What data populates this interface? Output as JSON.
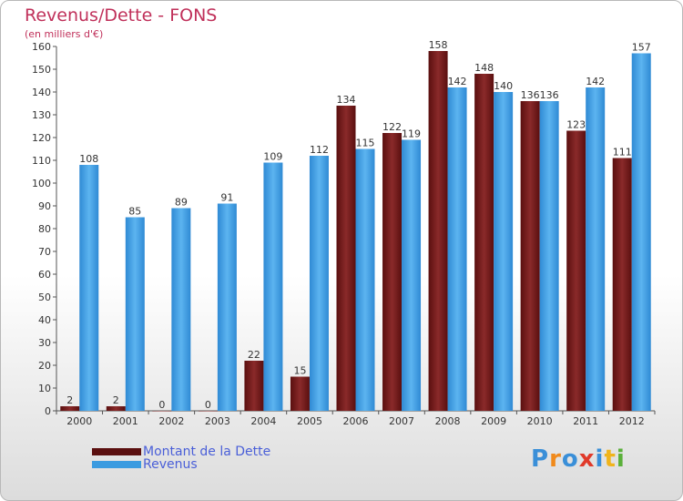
{
  "title": "Revenus/Dette - FONS",
  "subtitle": "(en milliers d'€)",
  "colors": {
    "dette": "#6b1414",
    "revenus": "#3d9ee3"
  },
  "legend": [
    {
      "label": "Montant de la Dette",
      "color": "#5a0f0f"
    },
    {
      "label": "Revenus",
      "color": "#3b9be0"
    }
  ],
  "logo": {
    "text": "Proxiti",
    "letters": [
      {
        "ch": "P",
        "color": "#3a8fd8"
      },
      {
        "ch": "r",
        "color": "#f08a1c"
      },
      {
        "ch": "o",
        "color": "#3a8fd8"
      },
      {
        "ch": "x",
        "color": "#e03a2a"
      },
      {
        "ch": "i",
        "color": "#3a8fd8"
      },
      {
        "ch": "t",
        "color": "#f0b41c"
      },
      {
        "ch": "i",
        "color": "#5ab03a"
      }
    ]
  },
  "chart_data": {
    "type": "bar",
    "title": "Revenus/Dette - FONS",
    "ylabel": "(en milliers d'€)",
    "xlabel": "",
    "ylim": [
      0,
      160
    ],
    "ytick_step": 10,
    "grid": false,
    "legend_position": "bottom-left",
    "categories": [
      "2000",
      "2001",
      "2002",
      "2003",
      "2004",
      "2005",
      "2006",
      "2007",
      "2008",
      "2009",
      "2010",
      "2011",
      "2012"
    ],
    "series": [
      {
        "name": "Montant de la Dette",
        "values": [
          2,
          2,
          0,
          0,
          22,
          15,
          134,
          122,
          158,
          148,
          136,
          123,
          111
        ]
      },
      {
        "name": "Revenus",
        "values": [
          108,
          85,
          89,
          91,
          109,
          112,
          115,
          119,
          142,
          140,
          136,
          142,
          157
        ]
      }
    ]
  }
}
